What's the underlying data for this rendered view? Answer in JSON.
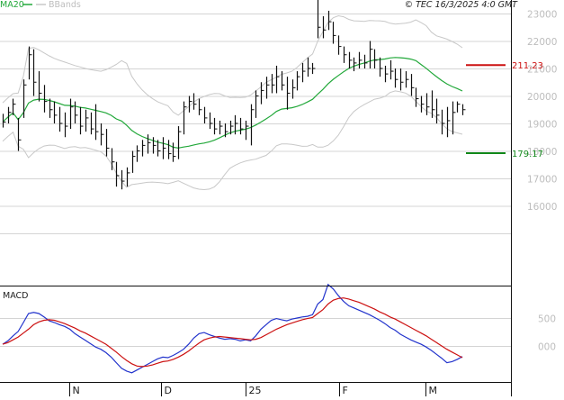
{
  "header": {
    "legend_ma": "MA20",
    "legend_bb": "BBands",
    "credit": "© TEC 16/3/2025 4:0 GMT"
  },
  "colors": {
    "price_bar": "#111111",
    "ma": "#22a83a",
    "bbands": "#c8c8c8",
    "resistance": "#cc1111",
    "support": "#11881a",
    "macd": "#2233cc",
    "signal": "#cc1111"
  },
  "chart_data": [
    {
      "type": "ohlc",
      "panel": "price",
      "ylim": [
        14800,
        24400
      ],
      "yticks": [
        16000,
        17000,
        18000,
        19000,
        20000,
        21000,
        22000,
        23000
      ],
      "ytick_labels": [
        "16000",
        "17000",
        "18000",
        "19000",
        "20000",
        "21000",
        "22000",
        "23000"
      ],
      "xticks": [
        "N",
        "D",
        "25",
        "F",
        "M"
      ],
      "levels": [
        {
          "name": "resistance",
          "value": 21123,
          "label": "211.23"
        },
        {
          "name": "support",
          "value": 17917,
          "label": "179.17"
        }
      ],
      "bars": [
        {
          "h": 19350,
          "l": 18850,
          "c": 19050
        },
        {
          "h": 19600,
          "l": 19000,
          "c": 19400
        },
        {
          "h": 19900,
          "l": 19300,
          "c": 19700
        },
        {
          "h": 19200,
          "l": 18000,
          "c": 18400
        },
        {
          "h": 20600,
          "l": 19200,
          "c": 20400
        },
        {
          "h": 21800,
          "l": 20600,
          "c": 21500
        },
        {
          "h": 21700,
          "l": 20000,
          "c": 20500
        },
        {
          "h": 20900,
          "l": 19800,
          "c": 20100
        },
        {
          "h": 20400,
          "l": 19400,
          "c": 19800
        },
        {
          "h": 19900,
          "l": 19200,
          "c": 19500
        },
        {
          "h": 19800,
          "l": 19000,
          "c": 19300
        },
        {
          "h": 19600,
          "l": 18700,
          "c": 19000
        },
        {
          "h": 19400,
          "l": 18500,
          "c": 18900
        },
        {
          "h": 19900,
          "l": 18800,
          "c": 19600
        },
        {
          "h": 19800,
          "l": 19000,
          "c": 19300
        },
        {
          "h": 19600,
          "l": 18600,
          "c": 18900
        },
        {
          "h": 19500,
          "l": 18700,
          "c": 19200
        },
        {
          "h": 19400,
          "l": 18600,
          "c": 18800
        },
        {
          "h": 19700,
          "l": 18400,
          "c": 18700
        },
        {
          "h": 19000,
          "l": 18200,
          "c": 18600
        },
        {
          "h": 18800,
          "l": 17800,
          "c": 18100
        },
        {
          "h": 18100,
          "l": 17300,
          "c": 17600
        },
        {
          "h": 17600,
          "l": 16700,
          "c": 17100
        },
        {
          "h": 17300,
          "l": 16600,
          "c": 16900
        },
        {
          "h": 17400,
          "l": 16700,
          "c": 17200
        },
        {
          "h": 18000,
          "l": 17200,
          "c": 17800
        },
        {
          "h": 18200,
          "l": 17600,
          "c": 18000
        },
        {
          "h": 18400,
          "l": 17800,
          "c": 18200
        },
        {
          "h": 18600,
          "l": 17900,
          "c": 18300
        },
        {
          "h": 18500,
          "l": 17900,
          "c": 18200
        },
        {
          "h": 18400,
          "l": 17800,
          "c": 18000
        },
        {
          "h": 18500,
          "l": 17700,
          "c": 18100
        },
        {
          "h": 18400,
          "l": 17700,
          "c": 17900
        },
        {
          "h": 18300,
          "l": 17600,
          "c": 17800
        },
        {
          "h": 18900,
          "l": 17700,
          "c": 18700
        },
        {
          "h": 19800,
          "l": 18600,
          "c": 19600
        },
        {
          "h": 20000,
          "l": 19400,
          "c": 19800
        },
        {
          "h": 20100,
          "l": 19500,
          "c": 19700
        },
        {
          "h": 19900,
          "l": 19300,
          "c": 19500
        },
        {
          "h": 19600,
          "l": 19000,
          "c": 19200
        },
        {
          "h": 19400,
          "l": 18800,
          "c": 19000
        },
        {
          "h": 19200,
          "l": 18600,
          "c": 18800
        },
        {
          "h": 19100,
          "l": 18600,
          "c": 18900
        },
        {
          "h": 19000,
          "l": 18500,
          "c": 18700
        },
        {
          "h": 19100,
          "l": 18600,
          "c": 18900
        },
        {
          "h": 19300,
          "l": 18600,
          "c": 19000
        },
        {
          "h": 19200,
          "l": 18600,
          "c": 18800
        },
        {
          "h": 19100,
          "l": 18400,
          "c": 18900
        },
        {
          "h": 19700,
          "l": 18200,
          "c": 19500
        },
        {
          "h": 20200,
          "l": 19200,
          "c": 20000
        },
        {
          "h": 20500,
          "l": 19700,
          "c": 20200
        },
        {
          "h": 20700,
          "l": 19900,
          "c": 20400
        },
        {
          "h": 20800,
          "l": 20100,
          "c": 20400
        },
        {
          "h": 21100,
          "l": 20100,
          "c": 20700
        },
        {
          "h": 20900,
          "l": 20200,
          "c": 20400
        },
        {
          "h": 20700,
          "l": 19500,
          "c": 20100
        },
        {
          "h": 20600,
          "l": 19900,
          "c": 20300
        },
        {
          "h": 20900,
          "l": 20200,
          "c": 20700
        },
        {
          "h": 21200,
          "l": 20500,
          "c": 20900
        },
        {
          "h": 21400,
          "l": 20700,
          "c": 21000
        },
        {
          "h": 21200,
          "l": 20800,
          "c": 21000
        },
        {
          "h": 23700,
          "l": 22100,
          "c": 22500
        },
        {
          "h": 22900,
          "l": 22100,
          "c": 22400
        },
        {
          "h": 23100,
          "l": 22400,
          "c": 22700
        },
        {
          "h": 22700,
          "l": 21900,
          "c": 22200
        },
        {
          "h": 22200,
          "l": 21500,
          "c": 21800
        },
        {
          "h": 21800,
          "l": 21200,
          "c": 21500
        },
        {
          "h": 21600,
          "l": 21000,
          "c": 21300
        },
        {
          "h": 21400,
          "l": 20900,
          "c": 21200
        },
        {
          "h": 21600,
          "l": 21000,
          "c": 21300
        },
        {
          "h": 21500,
          "l": 21000,
          "c": 21200
        },
        {
          "h": 22000,
          "l": 21000,
          "c": 21700
        },
        {
          "h": 21700,
          "l": 21000,
          "c": 21300
        },
        {
          "h": 21400,
          "l": 20700,
          "c": 21000
        },
        {
          "h": 21100,
          "l": 20500,
          "c": 20800
        },
        {
          "h": 21300,
          "l": 20600,
          "c": 20900
        },
        {
          "h": 21000,
          "l": 20300,
          "c": 20600
        },
        {
          "h": 21000,
          "l": 20200,
          "c": 20500
        },
        {
          "h": 20900,
          "l": 20300,
          "c": 20600
        },
        {
          "h": 20800,
          "l": 20000,
          "c": 20300
        },
        {
          "h": 20300,
          "l": 19600,
          "c": 19900
        },
        {
          "h": 20000,
          "l": 19400,
          "c": 19700
        },
        {
          "h": 20100,
          "l": 19300,
          "c": 19600
        },
        {
          "h": 20200,
          "l": 19200,
          "c": 19500
        },
        {
          "h": 19900,
          "l": 19000,
          "c": 19300
        },
        {
          "h": 19500,
          "l": 18600,
          "c": 19000
        },
        {
          "h": 19600,
          "l": 18500,
          "c": 19100
        },
        {
          "h": 19800,
          "l": 18600,
          "c": 19400
        },
        {
          "h": 19800,
          "l": 19400,
          "c": 19700
        },
        {
          "h": 19700,
          "l": 19300,
          "c": 19500
        }
      ]
    },
    {
      "type": "line",
      "panel": "macd",
      "title": "MACD",
      "ylim": [
        -900,
        1350
      ],
      "yticks": [
        0,
        500
      ],
      "ytick_labels": [
        "000",
        "500"
      ],
      "series": [
        {
          "name": "macd",
          "values": [
            30,
            90,
            180,
            260,
            420,
            580,
            600,
            580,
            520,
            450,
            420,
            380,
            350,
            300,
            220,
            160,
            100,
            40,
            -20,
            -60,
            -120,
            -200,
            -300,
            -400,
            -450,
            -480,
            -430,
            -380,
            -330,
            -280,
            -230,
            -200,
            -210,
            -170,
            -120,
            -60,
            30,
            140,
            220,
            240,
            200,
            170,
            140,
            120,
            130,
            120,
            90,
            110,
            90,
            180,
            300,
            380,
            460,
            490,
            470,
            450,
            480,
            500,
            520,
            530,
            560,
            750,
            830,
            1100,
            1020,
            900,
            800,
            720,
            680,
            640,
            600,
            560,
            510,
            460,
            400,
            330,
            280,
            210,
            160,
            110,
            70,
            30,
            -20,
            -80,
            -150,
            -220,
            -300,
            -280,
            -240,
            -190
          ]
        },
        {
          "name": "signal",
          "values": [
            30,
            60,
            110,
            160,
            230,
            300,
            380,
            430,
            460,
            470,
            460,
            430,
            400,
            360,
            320,
            270,
            230,
            180,
            130,
            80,
            30,
            -40,
            -110,
            -190,
            -260,
            -320,
            -360,
            -370,
            -360,
            -340,
            -310,
            -280,
            -270,
            -240,
            -200,
            -150,
            -90,
            -20,
            50,
            110,
            140,
            160,
            170,
            160,
            150,
            140,
            130,
            120,
            110,
            120,
            150,
            200,
            250,
            300,
            340,
            380,
            410,
            440,
            470,
            490,
            510,
            580,
            650,
            750,
            820,
            850,
            860,
            840,
            810,
            780,
            740,
            700,
            660,
            610,
            570,
            520,
            480,
            430,
            380,
            330,
            280,
            230,
            180,
            120,
            60,
            0,
            -60,
            -110,
            -160,
            -210
          ]
        }
      ]
    }
  ]
}
